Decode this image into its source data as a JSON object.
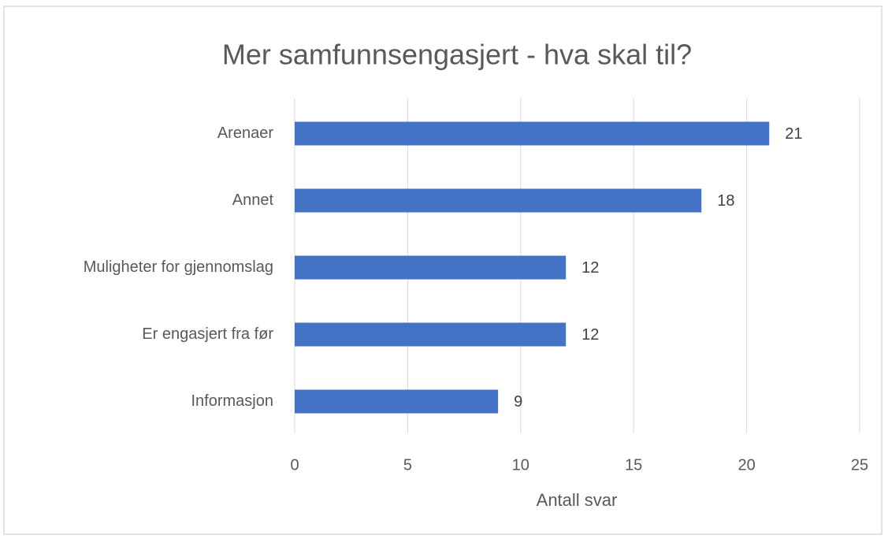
{
  "chart_data": {
    "type": "bar",
    "orientation": "horizontal",
    "title": "Mer samfunnsengasjert - hva skal til?",
    "xlabel": "Antall svar",
    "categories": [
      "Arenaer",
      "Annet",
      "Muligheter for gjennomslag",
      "Er engasjert fra før",
      "Informasjon"
    ],
    "values": [
      21,
      18,
      12,
      12,
      9
    ],
    "color": "#4472c4",
    "xlim": [
      0,
      25
    ],
    "xticks": [
      0,
      5,
      10,
      15,
      20,
      25
    ],
    "grid": true
  }
}
